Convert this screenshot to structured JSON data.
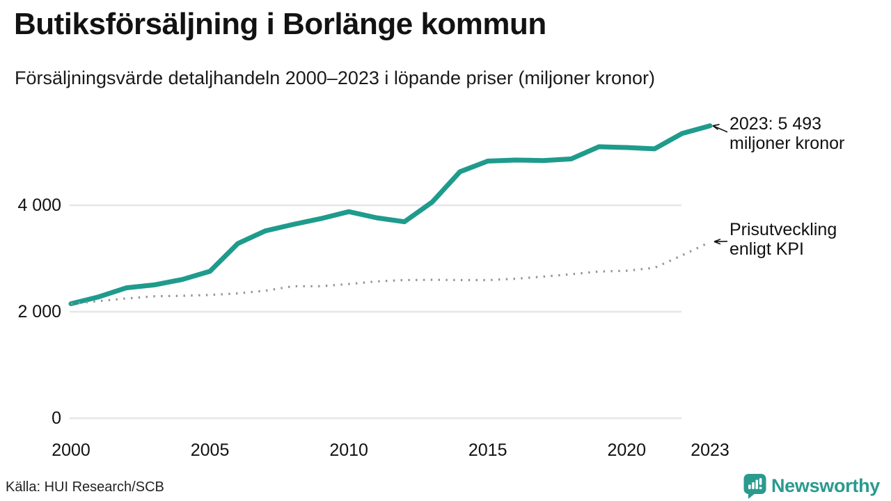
{
  "header": {
    "title": "Butiksförsäljning i Borlänge kommun",
    "subtitle": "Försäljningsvärde detaljhandeln 2000–2023 i löpande priser (miljoner kronor)"
  },
  "annotations": {
    "sales": {
      "line1": "2023: 5 493",
      "line2": "miljoner kronor"
    },
    "kpi": {
      "line1": "Prisutveckling",
      "line2": "enligt KPI"
    }
  },
  "source": {
    "label": "Källa: HUI Research/SCB"
  },
  "branding": {
    "name": "Newsworthy",
    "logo_icon": "bar-chart-speech-bubble-icon"
  },
  "colors": {
    "sales_line": "#1e9b8c",
    "kpi_dots": "#949494",
    "grid": "#e6e6ea",
    "brand": "#2a9a8e",
    "text": "#111111"
  },
  "chart_data": {
    "type": "line",
    "title": "Butiksförsäljning i Borlänge kommun",
    "subtitle": "Försäljningsvärde detaljhandeln 2000–2023 i löpande priser (miljoner kronor)",
    "xlabel": "",
    "ylabel": "miljoner kronor",
    "x": [
      2000,
      2001,
      2002,
      2003,
      2004,
      2005,
      2006,
      2007,
      2008,
      2009,
      2010,
      2011,
      2012,
      2013,
      2014,
      2015,
      2016,
      2017,
      2018,
      2019,
      2020,
      2021,
      2022,
      2023
    ],
    "series": [
      {
        "name": "Butiksförsäljning i löpande priser",
        "style": "solid",
        "color": "#1e9b8c",
        "values": [
          2150,
          2280,
          2450,
          2505,
          2605,
          2760,
          3280,
          3520,
          3640,
          3750,
          3880,
          3765,
          3690,
          4060,
          4630,
          4830,
          4850,
          4840,
          4870,
          5100,
          5085,
          5060,
          5350,
          5493
        ]
      },
      {
        "name": "Prisutveckling enligt KPI",
        "style": "dotted",
        "color": "#949494",
        "values": [
          2150,
          2200,
          2250,
          2290,
          2300,
          2315,
          2345,
          2395,
          2480,
          2480,
          2520,
          2570,
          2595,
          2600,
          2595,
          2595,
          2620,
          2660,
          2705,
          2755,
          2770,
          2825,
          3060,
          3310
        ]
      }
    ],
    "ylim": [
      0,
      5600
    ],
    "yticks": [
      0,
      2000,
      4000
    ],
    "ytick_labels": [
      "0",
      "2 000",
      "4 000"
    ],
    "xticks": [
      2000,
      2005,
      2010,
      2015,
      2020,
      2023
    ],
    "xtick_labels": [
      "2000",
      "2005",
      "2010",
      "2015",
      "2020",
      "2023"
    ],
    "grid": "horizontal",
    "legend": "annotations",
    "final_value_2023": "5 493"
  }
}
